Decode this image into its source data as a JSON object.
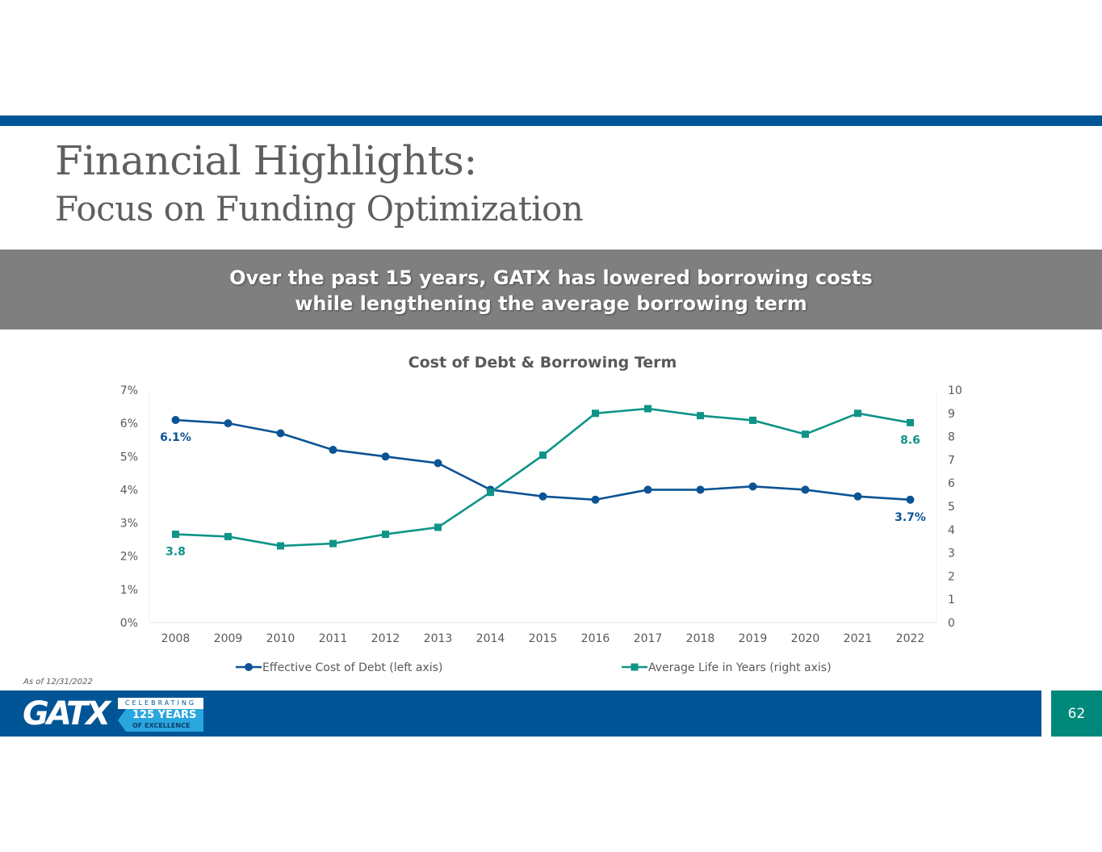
{
  "slide": {
    "title_line1": "Financial Highlights:",
    "title_line2": "Focus on Funding Optimization",
    "banner_line1": "Over the past 15 years, GATX has lowered borrowing costs",
    "banner_line2": "while lengthening the average borrowing term",
    "footnote": "As of 12/31/2022",
    "page_number": "62"
  },
  "logo": {
    "wordmark": "GATX",
    "badge_top": "CELEBRATING",
    "badge_years": "125 YEARS",
    "badge_sub": "OF EXCELLENCE"
  },
  "colors": {
    "brand_blue": "#005596",
    "teal": "#00897b",
    "series_debt": "#0b5394",
    "series_life": "#0f9488",
    "banner_gray": "#7f7f7f"
  },
  "chart_data": {
    "type": "line",
    "title": "Cost of Debt & Borrowing Term",
    "categories": [
      "2008",
      "2009",
      "2010",
      "2011",
      "2012",
      "2013",
      "2014",
      "2015",
      "2016",
      "2017",
      "2018",
      "2019",
      "2020",
      "2021",
      "2022"
    ],
    "series": [
      {
        "name": "Effective Cost of Debt (left axis)",
        "axis": "left",
        "marker": "circle",
        "values": [
          6.1,
          6.0,
          5.7,
          5.2,
          5.0,
          4.8,
          4.0,
          3.8,
          3.7,
          4.0,
          4.0,
          4.1,
          4.0,
          3.8,
          3.7
        ],
        "first_label": "6.1%",
        "last_label": "3.7%"
      },
      {
        "name": "Average Life in Years (right axis)",
        "axis": "right",
        "marker": "square",
        "values": [
          3.8,
          3.7,
          3.3,
          3.4,
          3.8,
          4.1,
          5.6,
          7.2,
          9.0,
          9.2,
          8.9,
          8.7,
          8.1,
          9.0,
          8.6
        ],
        "first_label": "3.8",
        "last_label": "8.6"
      }
    ],
    "y_left": {
      "min": 0,
      "max": 7,
      "ticks": [
        "0%",
        "1%",
        "2%",
        "3%",
        "4%",
        "5%",
        "6%",
        "7%"
      ]
    },
    "y_right": {
      "min": 0,
      "max": 10,
      "ticks": [
        "0",
        "1",
        "2",
        "3",
        "4",
        "5",
        "6",
        "7",
        "8",
        "9",
        "10"
      ]
    },
    "legend_position": "bottom"
  }
}
